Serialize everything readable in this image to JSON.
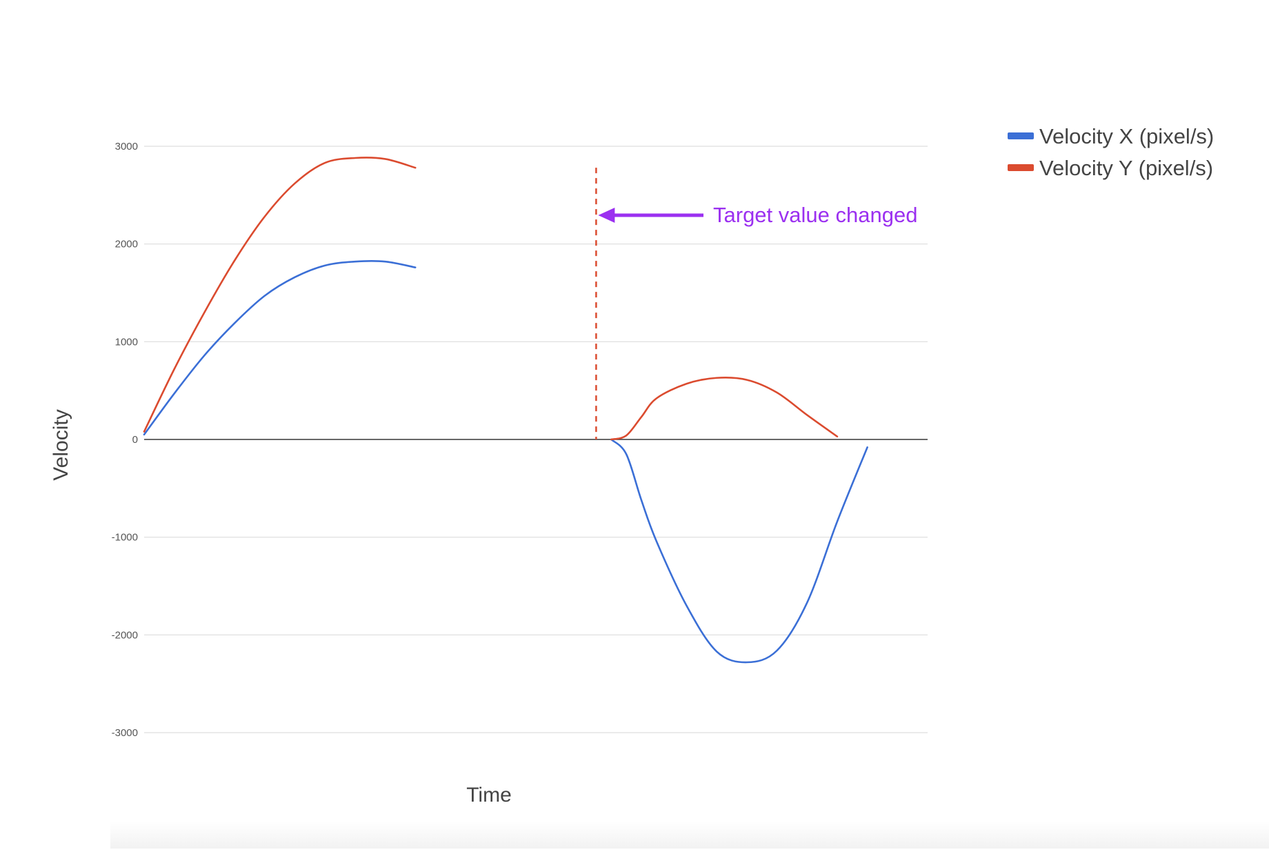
{
  "chart_data": {
    "type": "line",
    "xlabel": "Time",
    "ylabel": "Velocity",
    "ylim": [
      -3000,
      3000
    ],
    "yticks": [
      3000,
      2000,
      1000,
      0,
      -1000,
      -2000,
      -3000
    ],
    "ytick_labels": [
      "3000",
      "2000",
      "1000",
      "0",
      "-1000",
      "-2000",
      "-3000"
    ],
    "grid": true,
    "legend_position": "top-right",
    "x_shown": false,
    "x": [
      0,
      2,
      4,
      6,
      8,
      10,
      12,
      14,
      16,
      18,
      20,
      22,
      24,
      26,
      28,
      30,
      31,
      32,
      33,
      34,
      36,
      38,
      40,
      42,
      44,
      46,
      48,
      50,
      52
    ],
    "series": [
      {
        "name": "Velocity X (pixel/s)",
        "color": "#3b6fd6",
        "values": [
          50,
          470,
          860,
          1190,
          1470,
          1660,
          1780,
          1820,
          1820,
          1760,
          null,
          null,
          null,
          null,
          null,
          null,
          0,
          -150,
          -620,
          -1040,
          -1700,
          -2170,
          -2280,
          -2160,
          -1670,
          -840,
          -80,
          null,
          null
        ]
      },
      {
        "name": "Velocity Y (pixel/s)",
        "color": "#db4b2f",
        "values": [
          80,
          720,
          1300,
          1830,
          2280,
          2620,
          2830,
          2880,
          2870,
          2780,
          null,
          null,
          null,
          null,
          null,
          null,
          0,
          40,
          230,
          420,
          570,
          630,
          610,
          480,
          250,
          30,
          null,
          null,
          null
        ]
      }
    ],
    "annotation": {
      "text": "Target value changed",
      "color": "#9b30f0",
      "at_x": 30,
      "marker": "dashed vertical line"
    }
  }
}
